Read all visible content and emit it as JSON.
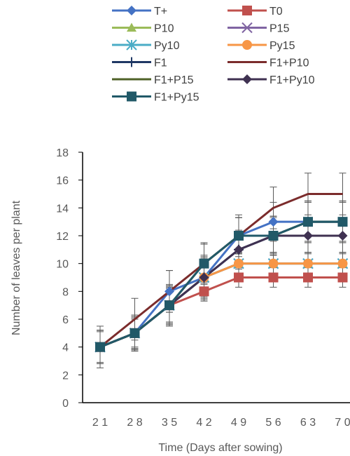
{
  "chart_data": {
    "type": "line",
    "xlabel": "Time (Days after sowing)",
    "ylabel": "Number of leaves per plant",
    "x": [
      21,
      28,
      35,
      42,
      49,
      56,
      63,
      70
    ],
    "x_tick_labels": [
      "2 1",
      "2 8",
      "3 5",
      "4 2",
      "4 9",
      "5 6",
      "6 3",
      "7 0"
    ],
    "ylim": [
      0,
      18
    ],
    "y_ticks": [
      0,
      2,
      4,
      6,
      8,
      10,
      12,
      14,
      16,
      18
    ],
    "grid": false,
    "legend_position": "top",
    "error_bars": true,
    "series": [
      {
        "name": "T+",
        "color": "#4472C4",
        "marker": "diamond",
        "values": [
          4,
          5,
          8,
          9,
          12,
          13,
          13,
          13
        ],
        "errors": [
          1.2,
          1.3,
          1.5,
          1.6,
          1.3,
          1.4,
          1.5,
          1.5
        ]
      },
      {
        "name": "T0",
        "color": "#C0504D",
        "marker": "square",
        "values": [
          4,
          5,
          7,
          8,
          9,
          9,
          9,
          9
        ],
        "errors": [
          1.1,
          1.0,
          1.2,
          0.7,
          0.7,
          0.7,
          0.7,
          0.7
        ]
      },
      {
        "name": "P10",
        "color": "#9BBB59",
        "marker": "triangle",
        "values": [
          4,
          5,
          7,
          9,
          10,
          10,
          10,
          10
        ],
        "errors": [
          1.2,
          1.1,
          1.3,
          1.0,
          0.8,
          0.8,
          0.8,
          0.8
        ]
      },
      {
        "name": "P15",
        "color": "#8064A2",
        "marker": "x",
        "values": [
          4,
          5,
          7,
          9,
          10,
          10,
          10,
          10
        ],
        "errors": [
          1.2,
          1.1,
          1.3,
          1.0,
          0.8,
          0.8,
          0.8,
          0.8
        ]
      },
      {
        "name": "Py10",
        "color": "#4BACC6",
        "marker": "star",
        "values": [
          4,
          5,
          7,
          9,
          10,
          10,
          10,
          10
        ],
        "errors": [
          1.2,
          1.1,
          1.3,
          1.0,
          0.8,
          0.8,
          0.8,
          0.8
        ]
      },
      {
        "name": "Py15",
        "color": "#F79646",
        "marker": "circle",
        "values": [
          4,
          5,
          7,
          9,
          10,
          10,
          10,
          10
        ],
        "errors": [
          1.2,
          1.1,
          1.3,
          1.0,
          0.8,
          0.8,
          0.8,
          0.8
        ]
      },
      {
        "name": "F1",
        "color": "#1F3864",
        "marker": "plus",
        "values": [
          4,
          5,
          7,
          9,
          11,
          12,
          13,
          13
        ],
        "errors": [
          1.2,
          1.2,
          1.5,
          1.5,
          1.4,
          1.4,
          1.5,
          1.5
        ]
      },
      {
        "name": "F1+P10",
        "color": "#7B2C2C",
        "marker": "dash",
        "values": [
          4,
          6,
          8,
          10,
          12,
          14,
          15,
          15
        ],
        "errors": [
          1.5,
          1.5,
          1.5,
          1.5,
          1.5,
          1.5,
          1.5,
          1.5
        ]
      },
      {
        "name": "F1+P15",
        "color": "#4F6228",
        "marker": "dash",
        "values": [
          4,
          5,
          7,
          10,
          12,
          12,
          13,
          13
        ],
        "errors": [
          1.2,
          1.2,
          1.4,
          1.4,
          1.3,
          1.4,
          1.4,
          1.4
        ]
      },
      {
        "name": "F1+Py10",
        "color": "#3F3151",
        "marker": "diamond",
        "values": [
          4,
          5,
          7,
          9,
          11,
          12,
          12,
          12
        ],
        "errors": [
          1.2,
          1.2,
          1.4,
          1.4,
          1.3,
          1.3,
          1.3,
          1.3
        ]
      },
      {
        "name": "F1+Py15",
        "color": "#215968",
        "marker": "square",
        "values": [
          4,
          5,
          7,
          10,
          12,
          12,
          13,
          13
        ],
        "errors": [
          1.2,
          1.2,
          1.4,
          1.4,
          1.3,
          1.4,
          1.4,
          1.4
        ]
      }
    ]
  }
}
